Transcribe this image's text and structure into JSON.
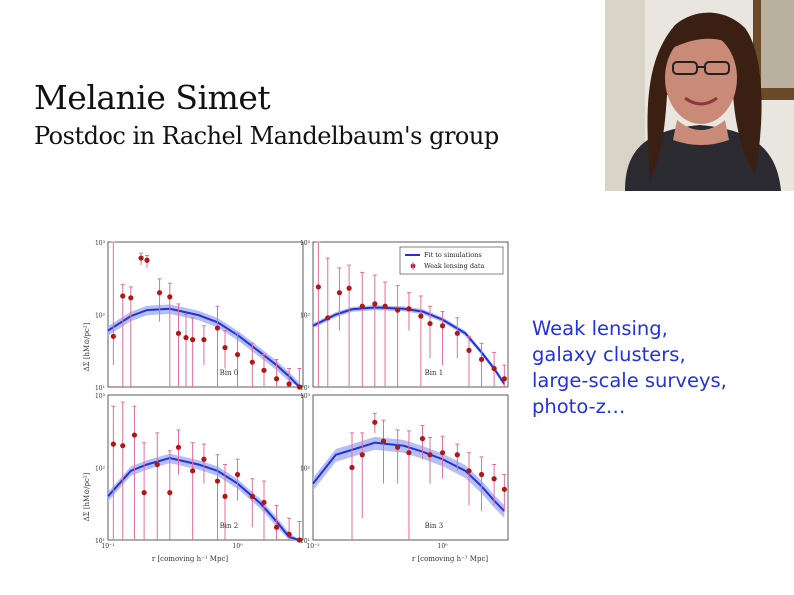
{
  "slide": {
    "name": "Melanie Simet",
    "role": "Postdoc in Rachel Mandelbaum's group",
    "topics": [
      "Weak lensing,",
      "galaxy clusters,",
      "large-scale surveys,",
      "photo-z…"
    ]
  },
  "colors": {
    "topics": "#2233dd",
    "model": "#2233dd",
    "model_band": "#a8b4ee",
    "data": "#b01818",
    "errorbar": "#e0709a"
  },
  "chart_data": {
    "type": "scatter",
    "panels": [
      {
        "label": "Bin 0",
        "legend": true,
        "model": {
          "x": [
            0.1,
            0.15,
            0.2,
            0.3,
            0.5,
            0.7,
            1,
            1.5,
            2,
            2.5,
            3
          ],
          "y": [
            60,
            95,
            115,
            120,
            98,
            78,
            52,
            30,
            20,
            14,
            10
          ],
          "band": 0.15
        },
        "points": [
          [
            0.11,
            50,
            20,
            1000
          ],
          [
            0.13,
            180,
            1,
            260
          ],
          [
            0.15,
            170,
            1,
            240
          ],
          [
            0.18,
            600,
            480,
            700
          ],
          [
            0.2,
            560,
            440,
            650
          ],
          [
            0.25,
            200,
            80,
            310
          ],
          [
            0.3,
            175,
            1,
            270
          ],
          [
            0.35,
            55,
            1,
            140
          ],
          [
            0.4,
            48,
            1,
            100
          ],
          [
            0.45,
            45,
            1,
            90
          ],
          [
            0.55,
            45,
            20,
            70
          ],
          [
            0.7,
            65,
            1,
            130
          ],
          [
            0.8,
            35,
            18,
            60
          ],
          [
            1,
            28,
            1,
            55
          ],
          [
            1.3,
            22,
            1,
            40
          ],
          [
            1.6,
            17,
            8,
            28
          ],
          [
            2,
            13,
            1,
            24
          ],
          [
            2.5,
            11,
            1,
            18
          ],
          [
            3,
            10,
            2,
            18
          ]
        ]
      },
      {
        "label": "Bin 1",
        "legend": false,
        "model": {
          "x": [
            0.1,
            0.15,
            0.2,
            0.3,
            0.5,
            0.7,
            1,
            1.5,
            2,
            2.5,
            3
          ],
          "y": [
            70,
            100,
            118,
            125,
            120,
            110,
            85,
            55,
            30,
            18,
            11
          ],
          "band": 0.08
        },
        "points": [
          [
            0.11,
            240,
            1,
            1000
          ],
          [
            0.13,
            90,
            1,
            600
          ],
          [
            0.16,
            200,
            60,
            440
          ],
          [
            0.19,
            230,
            1,
            480
          ],
          [
            0.24,
            130,
            1,
            380
          ],
          [
            0.3,
            140,
            1,
            350
          ],
          [
            0.36,
            130,
            1,
            280
          ],
          [
            0.45,
            115,
            10,
            250
          ],
          [
            0.55,
            120,
            60,
            200
          ],
          [
            0.68,
            95,
            1,
            180
          ],
          [
            0.8,
            75,
            25,
            130
          ],
          [
            1,
            70,
            20,
            110
          ],
          [
            1.3,
            55,
            25,
            90
          ],
          [
            1.6,
            32,
            10,
            50
          ],
          [
            2,
            24,
            8,
            40
          ],
          [
            2.5,
            18,
            5,
            30
          ],
          [
            3,
            13,
            5,
            20
          ]
        ]
      },
      {
        "label": "Bin 2",
        "legend": false,
        "model": {
          "x": [
            0.1,
            0.15,
            0.2,
            0.3,
            0.5,
            0.7,
            1,
            1.5,
            2,
            2.5,
            3
          ],
          "y": [
            40,
            90,
            110,
            135,
            110,
            90,
            60,
            32,
            18,
            11,
            8
          ],
          "band": 0.15
        },
        "points": [
          [
            0.11,
            210,
            1,
            700
          ],
          [
            0.13,
            200,
            1,
            800
          ],
          [
            0.16,
            280,
            1,
            700
          ],
          [
            0.19,
            45,
            1,
            220
          ],
          [
            0.24,
            110,
            1,
            300
          ],
          [
            0.3,
            45,
            1,
            170
          ],
          [
            0.35,
            190,
            80,
            330
          ],
          [
            0.45,
            90,
            1,
            220
          ],
          [
            0.55,
            130,
            60,
            210
          ],
          [
            0.7,
            65,
            1,
            150
          ],
          [
            0.8,
            40,
            1,
            110
          ],
          [
            1,
            80,
            35,
            130
          ],
          [
            1.3,
            40,
            15,
            70
          ],
          [
            1.6,
            33,
            10,
            65
          ],
          [
            2,
            15,
            4,
            30
          ],
          [
            2.5,
            12,
            5,
            20
          ],
          [
            3,
            10,
            4,
            18
          ]
        ]
      },
      {
        "label": "Bin 3",
        "legend": false,
        "model": {
          "x": [
            0.1,
            0.15,
            0.2,
            0.3,
            0.5,
            0.7,
            1,
            1.5,
            2,
            2.5,
            3
          ],
          "y": [
            60,
            150,
            175,
            220,
            200,
            165,
            130,
            90,
            55,
            35,
            25
          ],
          "band": 0.2
        },
        "points": [
          [
            0.2,
            100,
            1,
            300
          ],
          [
            0.24,
            150,
            20,
            300
          ],
          [
            0.3,
            420,
            300,
            560
          ],
          [
            0.35,
            230,
            60,
            450
          ],
          [
            0.45,
            190,
            60,
            330
          ],
          [
            0.55,
            160,
            10,
            320
          ],
          [
            0.7,
            250,
            130,
            380
          ],
          [
            0.8,
            150,
            60,
            260
          ],
          [
            1,
            160,
            70,
            270
          ],
          [
            1.3,
            150,
            90,
            210
          ],
          [
            1.6,
            90,
            30,
            160
          ],
          [
            2,
            80,
            25,
            140
          ],
          [
            2.5,
            70,
            30,
            110
          ],
          [
            3,
            50,
            25,
            80
          ]
        ]
      }
    ],
    "legend": [
      "Fit to simulations",
      "Weak lensing data"
    ],
    "ylabel_top": "ΔΣ [hM⊙/pc²]",
    "ylabel_bottom": "ΔΣ [hM⊙/pc²]",
    "xlabel": "r [comoving h⁻¹ Mpc]",
    "yticks": [
      "10¹",
      "10²",
      "10³"
    ],
    "xticks": [
      "10⁻¹",
      "10⁰"
    ],
    "xlim": [
      0.1,
      3.2
    ],
    "ylim": [
      10,
      1000
    ],
    "xscale": "log",
    "yscale": "log"
  }
}
